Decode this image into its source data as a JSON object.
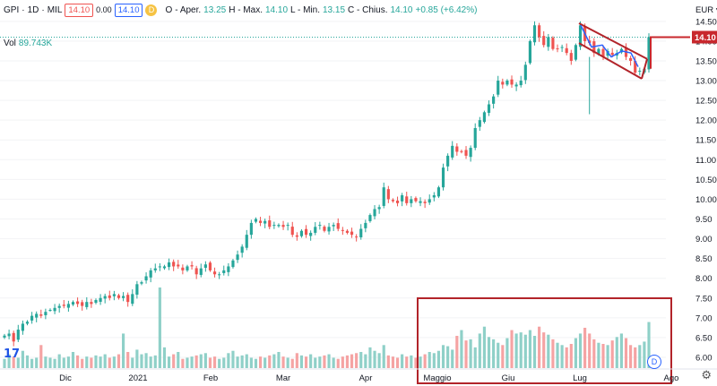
{
  "header": {
    "symbol": "GPI",
    "interval": "1D",
    "exchange": "MIL",
    "price_box_red": "14.10",
    "spread": "0.00",
    "price_box_blue": "14.10",
    "o_label": "O",
    "o_text": "- Aper.",
    "o_val": "13.25",
    "h_text": "H - Max.",
    "h_val": "14.10",
    "l_text": "L - Min.",
    "l_val": "13.15",
    "c_text": "C - Chius.",
    "c_val": "14.10",
    "change": "+0.85 (+6.42%)",
    "vol_label": "Vol",
    "vol_val": "89.743K",
    "badge_letter": "D"
  },
  "currency": "EUR",
  "last_price_label": "14.10",
  "colors": {
    "up": "#26a69a",
    "down": "#ef5350",
    "vol_up": "#8fd0c8",
    "vol_down": "#f5a3a3",
    "annotation": "#b2242a",
    "trend": "#2962ff",
    "price_line": "#c8282d"
  },
  "chart_data": {
    "type": "candlestick",
    "title": "GPI · 1D · MIL",
    "ylim": [
      5.75,
      14.7
    ],
    "y_ticks": [
      "6.00",
      "6.50",
      "7.00",
      "7.50",
      "8.00",
      "8.50",
      "9.00",
      "9.50",
      "10.00",
      "10.50",
      "11.00",
      "11.50",
      "12.00",
      "12.50",
      "13.00",
      "13.50",
      "14.00",
      "14.50"
    ],
    "x_ticks": [
      "Dic",
      "2021",
      "Feb",
      "Mar",
      "Apr",
      "Maggio",
      "Giu",
      "Lug",
      "Ago"
    ],
    "closes": [
      6.55,
      6.6,
      6.4,
      6.7,
      6.85,
      6.9,
      7.05,
      7.1,
      7.05,
      7.15,
      7.2,
      7.25,
      7.3,
      7.3,
      7.35,
      7.4,
      7.35,
      7.3,
      7.4,
      7.35,
      7.45,
      7.5,
      7.55,
      7.5,
      7.6,
      7.5,
      7.55,
      7.4,
      7.6,
      7.85,
      7.9,
      8.05,
      8.2,
      8.25,
      8.3,
      8.3,
      8.4,
      8.3,
      8.3,
      8.2,
      8.3,
      8.3,
      8.1,
      8.25,
      8.35,
      8.2,
      8.1,
      8.1,
      8.2,
      8.3,
      8.45,
      8.6,
      8.8,
      9.1,
      9.4,
      9.5,
      9.4,
      9.45,
      9.3,
      9.35,
      9.35,
      9.3,
      9.35,
      9.1,
      9.05,
      9.2,
      9.1,
      9.15,
      9.3,
      9.35,
      9.2,
      9.3,
      9.35,
      9.25,
      9.2,
      9.15,
      9.1,
      9.05,
      9.25,
      9.4,
      9.6,
      9.75,
      9.8,
      10.3,
      10.0,
      9.95,
      9.9,
      10.1,
      9.9,
      10.0,
      9.95,
      9.95,
      9.9,
      10.0,
      10.1,
      10.3,
      10.8,
      11.1,
      11.35,
      11.2,
      11.2,
      11.1,
      11.3,
      11.8,
      12.0,
      12.2,
      12.4,
      12.6,
      13.0,
      12.9,
      13.0,
      12.9,
      12.9,
      13.0,
      13.4,
      14.0,
      14.4,
      14.1,
      13.9,
      14.1,
      13.8,
      13.8,
      13.85,
      13.7,
      13.5,
      13.9,
      14.4,
      14.0,
      13.95,
      13.7,
      13.8,
      13.6,
      13.75,
      13.65,
      13.7,
      13.8,
      13.6,
      13.5,
      13.2,
      13.25,
      13.3,
      14.1
    ],
    "volumes": [
      8,
      12,
      10,
      9,
      15,
      11,
      8,
      9,
      20,
      10,
      9,
      8,
      12,
      9,
      10,
      14,
      11,
      8,
      10,
      9,
      11,
      10,
      12,
      9,
      10,
      12,
      30,
      14,
      9,
      16,
      12,
      13,
      10,
      11,
      70,
      18,
      10,
      12,
      14,
      8,
      9,
      10,
      11,
      12,
      13,
      9,
      10,
      8,
      9,
      13,
      15,
      10,
      11,
      12,
      9,
      8,
      10,
      9,
      11,
      12,
      14,
      10,
      9,
      8,
      13,
      11,
      10,
      12,
      9,
      10,
      11,
      12,
      9,
      8,
      10,
      11,
      12,
      13,
      14,
      12,
      18,
      15,
      13,
      20,
      11,
      10,
      9,
      12,
      10,
      11,
      9,
      10,
      12,
      14,
      13,
      15,
      20,
      19,
      16,
      28,
      33,
      24,
      25,
      18,
      30,
      36,
      27,
      25,
      22,
      20,
      26,
      33,
      30,
      31,
      29,
      33,
      28,
      36,
      31,
      29,
      25,
      22,
      20,
      18,
      21,
      26,
      30,
      35,
      30,
      25,
      22,
      21,
      20,
      24,
      27,
      30,
      26,
      20,
      18,
      20,
      23,
      40
    ]
  }
}
